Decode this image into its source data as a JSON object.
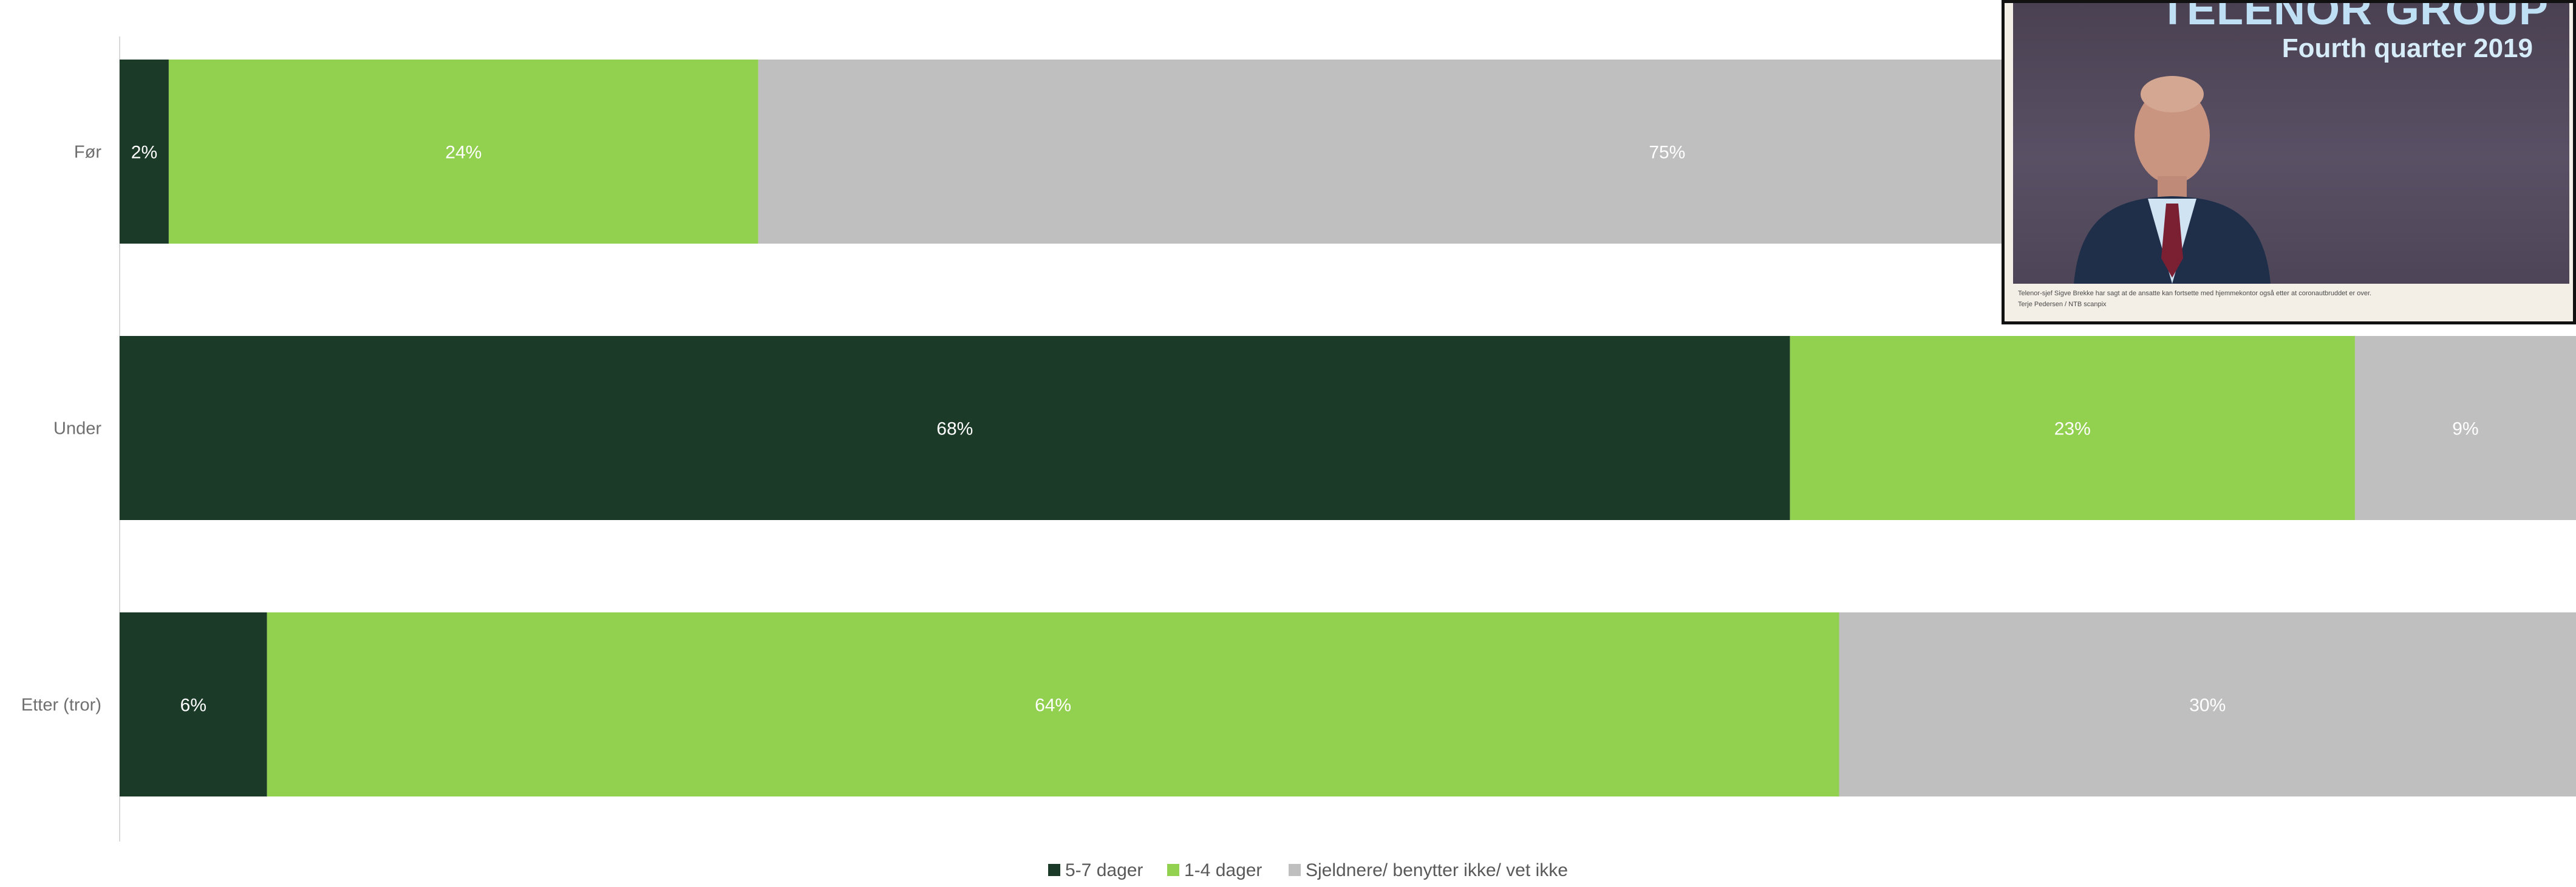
{
  "chart_data": {
    "type": "bar",
    "orientation": "horizontal",
    "stacked": true,
    "categories": [
      "Før",
      "Under",
      "Etter (tror)"
    ],
    "series": [
      {
        "name": "5-7 dager",
        "color": "#1b3a28",
        "values": [
          2,
          68,
          6
        ],
        "labels": [
          "2%",
          "68%",
          "6%"
        ]
      },
      {
        "name": "1-4 dager",
        "color": "#92d050",
        "values": [
          24,
          23,
          64
        ],
        "labels": [
          "24%",
          "23%",
          "64%"
        ]
      },
      {
        "name": "Sjeldnere/ benytter ikke/ vet ikke",
        "color": "#bfbfbf",
        "values": [
          75,
          9,
          30
        ],
        "labels": [
          "75%",
          "9%",
          "30%"
        ]
      }
    ],
    "xlim": [
      0,
      100
    ],
    "legend_position": "bottom",
    "grid": false
  },
  "photo": {
    "brand_title": "TELENOR GROUP",
    "brand_subtitle": "Fourth quarter 2019",
    "caption": "Telenor-sjef Sigve Brekke har sagt at de ansatte kan fortsette med hjemmekontor også etter at coronautbruddet er over.",
    "credit": "Terje Pedersen / NTB scanpix"
  }
}
